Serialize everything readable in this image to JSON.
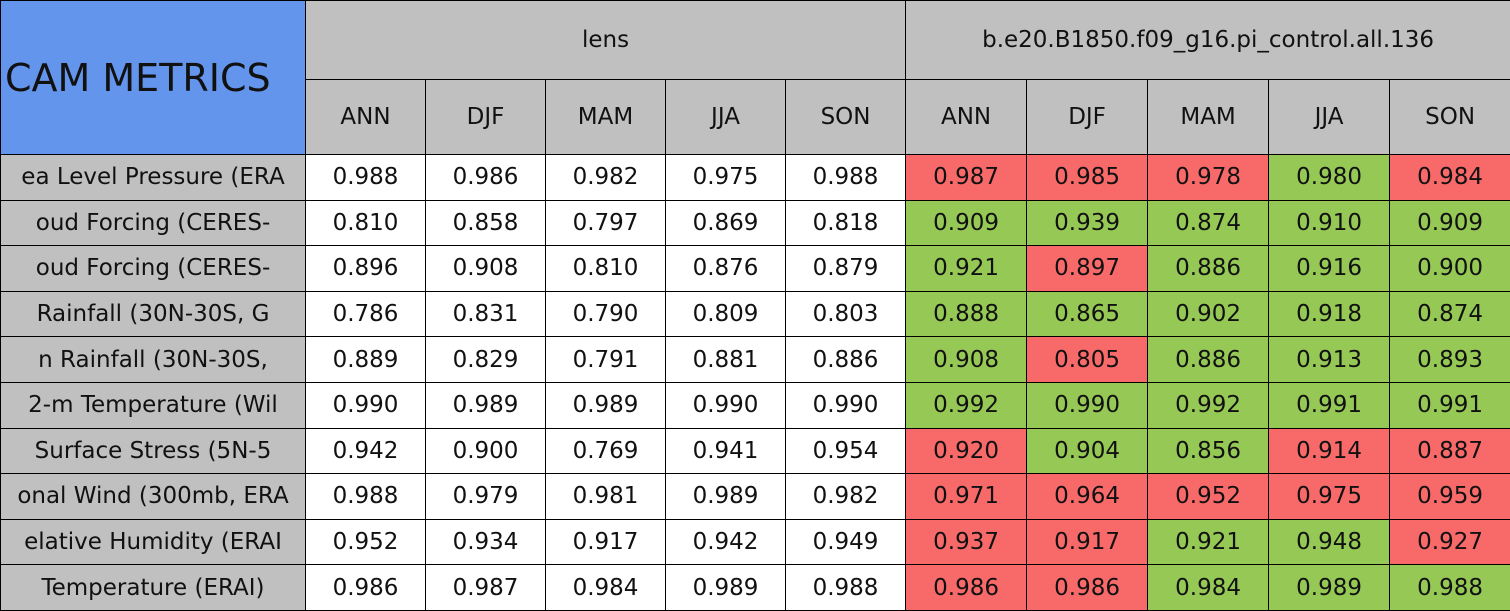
{
  "header": {
    "title": "CAM METRICS",
    "groups": [
      "lens",
      "b.e20.B1850.f09_g16.pi_control.all.136"
    ],
    "seasons": [
      "ANN",
      "DJF",
      "MAM",
      "JJA",
      "SON"
    ]
  },
  "rows": [
    {
      "label": "ea Level Pressure (ERA",
      "lens": [
        "0.988",
        "0.986",
        "0.982",
        "0.975",
        "0.988"
      ],
      "control": [
        "0.987",
        "0.985",
        "0.978",
        "0.980",
        "0.984"
      ],
      "control_colors": [
        "#f86a6a",
        "#f86a6a",
        "#f86a6a",
        "#96c855",
        "#f86a6a"
      ]
    },
    {
      "label": "oud Forcing (CERES-",
      "lens": [
        "0.810",
        "0.858",
        "0.797",
        "0.869",
        "0.818"
      ],
      "control": [
        "0.909",
        "0.939",
        "0.874",
        "0.910",
        "0.909"
      ],
      "control_colors": [
        "#96c855",
        "#96c855",
        "#96c855",
        "#96c855",
        "#96c855"
      ]
    },
    {
      "label": "oud Forcing (CERES-",
      "lens": [
        "0.896",
        "0.908",
        "0.810",
        "0.876",
        "0.879"
      ],
      "control": [
        "0.921",
        "0.897",
        "0.886",
        "0.916",
        "0.900"
      ],
      "control_colors": [
        "#96c855",
        "#f86a6a",
        "#96c855",
        "#96c855",
        "#96c855"
      ]
    },
    {
      "label": "Rainfall (30N-30S, G",
      "lens": [
        "0.786",
        "0.831",
        "0.790",
        "0.809",
        "0.803"
      ],
      "control": [
        "0.888",
        "0.865",
        "0.902",
        "0.918",
        "0.874"
      ],
      "control_colors": [
        "#96c855",
        "#96c855",
        "#96c855",
        "#96c855",
        "#96c855"
      ]
    },
    {
      "label": "n Rainfall (30N-30S,",
      "lens": [
        "0.889",
        "0.829",
        "0.791",
        "0.881",
        "0.886"
      ],
      "control": [
        "0.908",
        "0.805",
        "0.886",
        "0.913",
        "0.893"
      ],
      "control_colors": [
        "#96c855",
        "#f86a6a",
        "#96c855",
        "#96c855",
        "#96c855"
      ]
    },
    {
      "label": "2-m Temperature (Wil",
      "lens": [
        "0.990",
        "0.989",
        "0.989",
        "0.990",
        "0.990"
      ],
      "control": [
        "0.992",
        "0.990",
        "0.992",
        "0.991",
        "0.991"
      ],
      "control_colors": [
        "#96c855",
        "#96c855",
        "#96c855",
        "#96c855",
        "#96c855"
      ]
    },
    {
      "label": "Surface Stress (5N-5",
      "lens": [
        "0.942",
        "0.900",
        "0.769",
        "0.941",
        "0.954"
      ],
      "control": [
        "0.920",
        "0.904",
        "0.856",
        "0.914",
        "0.887"
      ],
      "control_colors": [
        "#f86a6a",
        "#96c855",
        "#96c855",
        "#f86a6a",
        "#f86a6a"
      ]
    },
    {
      "label": "onal Wind (300mb, ERA",
      "lens": [
        "0.988",
        "0.979",
        "0.981",
        "0.989",
        "0.982"
      ],
      "control": [
        "0.971",
        "0.964",
        "0.952",
        "0.975",
        "0.959"
      ],
      "control_colors": [
        "#f86a6a",
        "#f86a6a",
        "#f86a6a",
        "#f86a6a",
        "#f86a6a"
      ]
    },
    {
      "label": "elative Humidity (ERAI",
      "lens": [
        "0.952",
        "0.934",
        "0.917",
        "0.942",
        "0.949"
      ],
      "control": [
        "0.937",
        "0.917",
        "0.921",
        "0.948",
        "0.927"
      ],
      "control_colors": [
        "#f86a6a",
        "#f86a6a",
        "#96c855",
        "#96c855",
        "#f86a6a"
      ]
    },
    {
      "label": "Temperature (ERAI)",
      "lens": [
        "0.986",
        "0.987",
        "0.984",
        "0.989",
        "0.988"
      ],
      "control": [
        "0.986",
        "0.986",
        "0.984",
        "0.989",
        "0.988"
      ],
      "control_colors": [
        "#f86a6a",
        "#f86a6a",
        "#96c855",
        "#96c855",
        "#96c855"
      ]
    }
  ]
}
